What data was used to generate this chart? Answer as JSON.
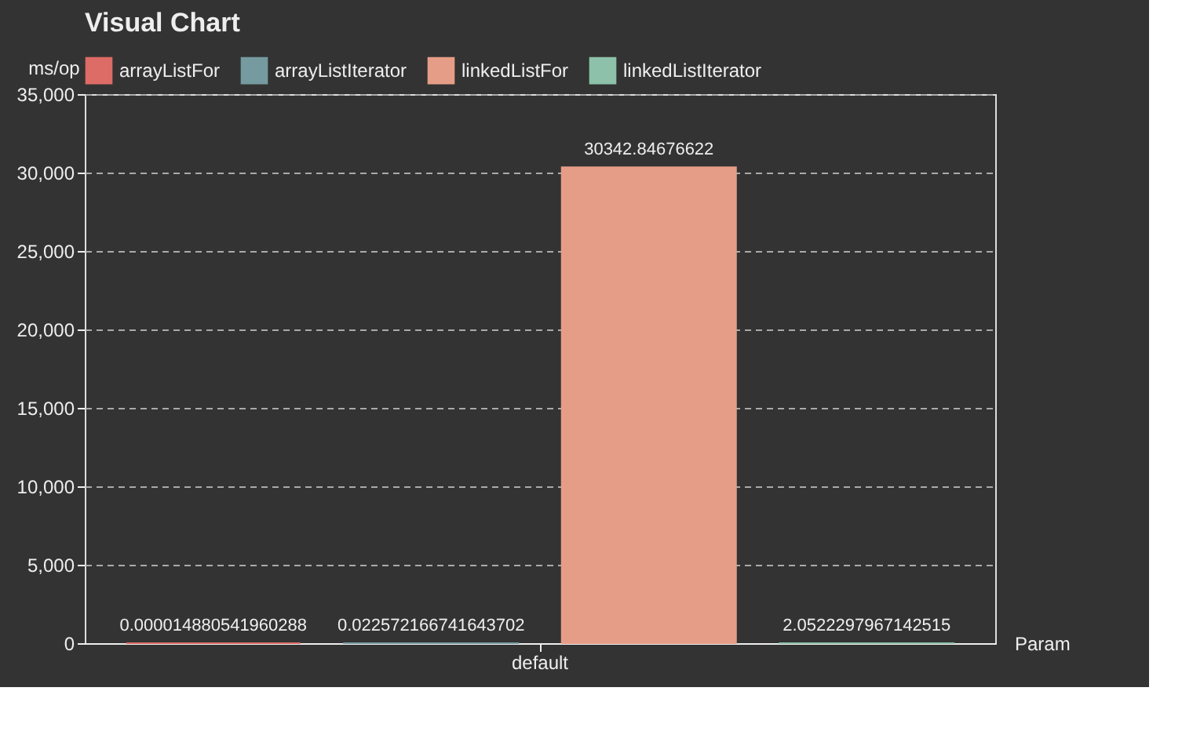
{
  "chart_data": {
    "type": "bar",
    "title": "Visual Chart",
    "xlabel": "Param",
    "ylabel": "ms/op",
    "categories": [
      "default"
    ],
    "series": [
      {
        "name": "arrayListFor",
        "color": "#dd6b66",
        "values": [
          1.4880541960288e-05
        ],
        "value_labels": [
          "0.000014880541960288"
        ]
      },
      {
        "name": "arrayListIterator",
        "color": "#759aa0",
        "values": [
          0.022572166741643702
        ],
        "value_labels": [
          "0.022572166741643702"
        ]
      },
      {
        "name": "linkedListFor",
        "color": "#e69d87",
        "values": [
          30342.84676622
        ],
        "value_labels": [
          "30342.84676622"
        ]
      },
      {
        "name": "linkedListIterator",
        "color": "#8dc1a9",
        "values": [
          2.0522297967142515
        ],
        "value_labels": [
          "2.0522297967142515"
        ]
      }
    ],
    "ylim": [
      0,
      35000
    ],
    "yticks": [
      0,
      {
        "value": 5000,
        "label": "5,000"
      },
      {
        "value": 10000,
        "label": "10,000"
      },
      {
        "value": 15000,
        "label": "15,000"
      },
      {
        "value": 20000,
        "label": "20,000"
      },
      {
        "value": 25000,
        "label": "25,000"
      },
      {
        "value": 30000,
        "label": "30,000"
      },
      {
        "value": 35000,
        "label": "35,000"
      }
    ],
    "grid": "y",
    "legend": "top"
  }
}
